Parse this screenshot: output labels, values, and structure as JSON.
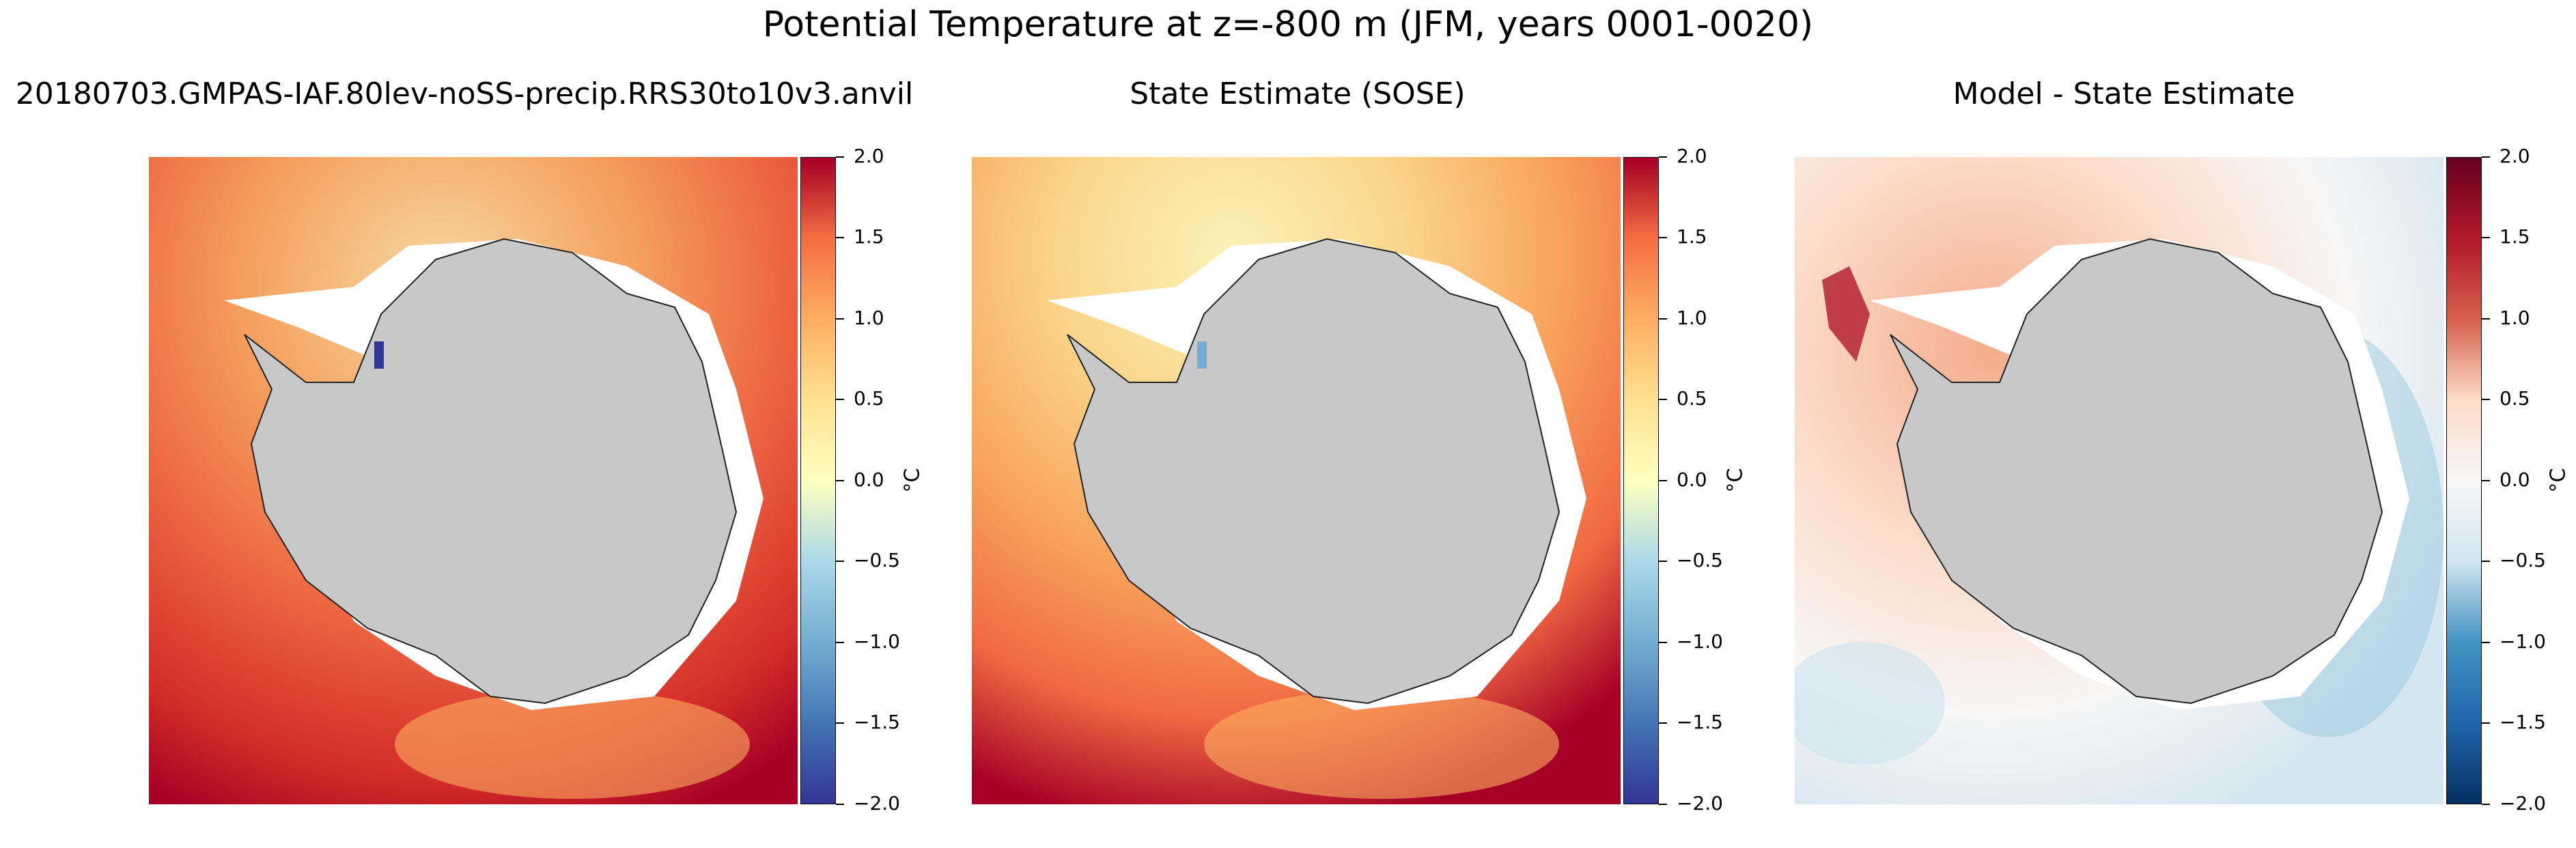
{
  "figure": {
    "suptitle": "Potential Temperature at z=-800 m (JFM, years 0001-0020)"
  },
  "panels": [
    {
      "title": "20180703.GMPAS-IAF.80lev-noSS-precip.RRS30to10v3.anvil",
      "colormap": "RdYlBu_r",
      "colorbar": {
        "ticks": [
          "2.0",
          "1.5",
          "1.0",
          "0.5",
          "0.0",
          "−0.5",
          "−1.0",
          "−1.5",
          "−2.0"
        ],
        "unit": "°C",
        "range": [
          -2.0,
          2.0
        ]
      }
    },
    {
      "title": "State Estimate (SOSE)",
      "colormap": "RdYlBu_r",
      "colorbar": {
        "ticks": [
          "2.0",
          "1.5",
          "1.0",
          "0.5",
          "0.0",
          "−0.5",
          "−1.0",
          "−1.5",
          "−2.0"
        ],
        "unit": "°C",
        "range": [
          -2.0,
          2.0
        ]
      }
    },
    {
      "title": "Model - State Estimate",
      "colormap": "RdBu_r",
      "colorbar": {
        "ticks": [
          "2.0",
          "1.5",
          "1.0",
          "0.5",
          "0.0",
          "−0.5",
          "−1.0",
          "−1.5",
          "−2.0"
        ],
        "unit": "°C",
        "range": [
          -2.0,
          2.0
        ]
      }
    }
  ],
  "colors": {
    "land": "#c8c8c8",
    "ice_shelf": "#ffffff",
    "warm": "#a50026",
    "orange": "#f46d43",
    "cool": "#313695",
    "diff_red": "#67001f",
    "diff_blue": "#053061"
  }
}
